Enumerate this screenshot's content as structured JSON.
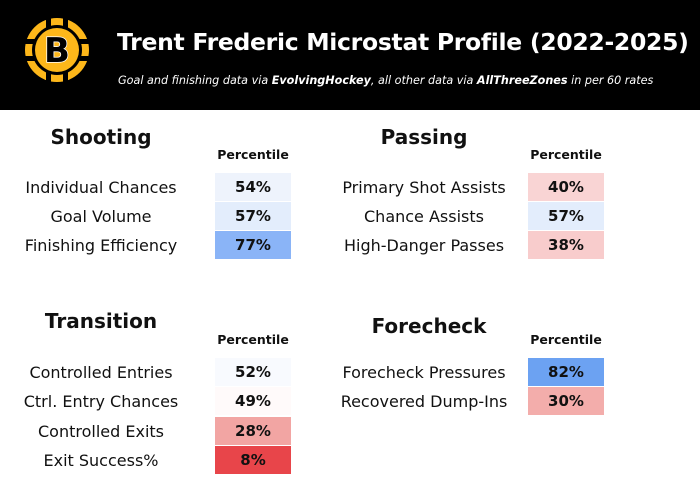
{
  "header": {
    "title": "Trent Frederic Microstat Profile (2022-2025)",
    "subtitle_parts": [
      "Goal and finishing data via ",
      "EvolvingHockey",
      ", all other data via ",
      "AllThreeZones",
      " in per 60 rates"
    ]
  },
  "logo": {
    "letter": "B",
    "colors": {
      "gold": "#FDB71A",
      "black": "#000000",
      "white": "#ffffff"
    }
  },
  "percentile_header": "Percentile",
  "sections": {
    "shooting": {
      "title": "Shooting",
      "rows": [
        {
          "label": "Individual Chances",
          "value": "54%",
          "color": "#eef3fc"
        },
        {
          "label": "Goal Volume",
          "value": "57%",
          "color": "#e3edfc"
        },
        {
          "label": "Finishing Efficiency",
          "value": "77%",
          "color": "#8ab4f7"
        }
      ]
    },
    "passing": {
      "title": "Passing",
      "rows": [
        {
          "label": "Primary Shot Assists",
          "value": "40%",
          "color": "#f9d4d4"
        },
        {
          "label": "Chance Assists",
          "value": "57%",
          "color": "#e3edfc"
        },
        {
          "label": "High-Danger Passes",
          "value": "38%",
          "color": "#f8cccc"
        }
      ]
    },
    "transition": {
      "title": "Transition",
      "rows": [
        {
          "label": "Controlled Entries",
          "value": "52%",
          "color": "#f8fafe"
        },
        {
          "label": "Ctrl. Entry Chances",
          "value": "49%",
          "color": "#fffafa"
        },
        {
          "label": "Controlled Exits",
          "value": "28%",
          "color": "#f2a5a3"
        },
        {
          "label": "Exit Success%",
          "value": "8%",
          "color": "#e8454a"
        }
      ]
    },
    "forecheck": {
      "title": "Forecheck",
      "rows": [
        {
          "label": "Forecheck Pressures",
          "value": "82%",
          "color": "#6ca2f2"
        },
        {
          "label": "Recovered Dump-Ins",
          "value": "30%",
          "color": "#f3adab"
        }
      ]
    }
  }
}
